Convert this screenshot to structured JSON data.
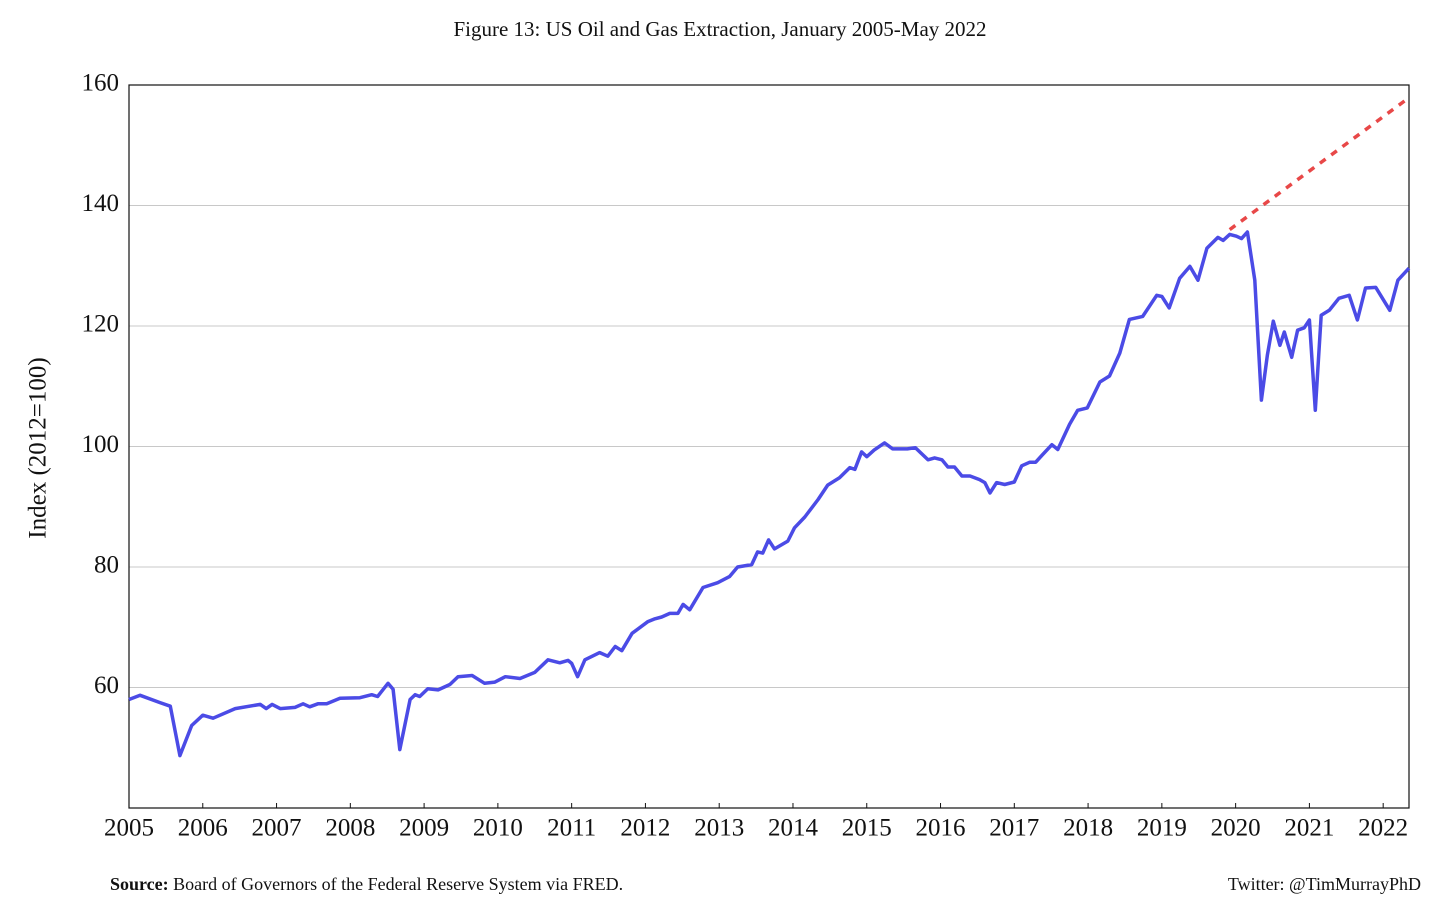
{
  "chart_data": {
    "type": "line",
    "title": "Figure 13: US Oil and Gas Extraction, January 2005-May 2022",
    "ylabel": "Index (2012=100)",
    "source_label": "Source:",
    "source": "Board of Governors of the Federal Reserve System via FRED.",
    "credit": "Twitter: @TimMurrayPhD",
    "xlim": [
      2005,
      2022.35
    ],
    "xticks": [
      2005,
      2006,
      2007,
      2008,
      2009,
      2010,
      2011,
      2012,
      2013,
      2014,
      2015,
      2016,
      2017,
      2018,
      2019,
      2020,
      2021,
      2022
    ],
    "ylim": [
      40,
      160
    ],
    "yticks": [
      60,
      80,
      100,
      120,
      140,
      160
    ],
    "grid": true,
    "series": [
      {
        "color": "#4b4be6",
        "x": [
          2005.0,
          2005.15,
          2005.42,
          2005.56,
          2005.69,
          2005.85,
          2006.0,
          2006.14,
          2006.44,
          2006.78,
          2006.86,
          2006.94,
          2007.05,
          2007.25,
          2007.36,
          2007.45,
          2007.56,
          2007.68,
          2007.86,
          2008.13,
          2008.29,
          2008.37,
          2008.51,
          2008.58,
          2008.67,
          2008.81,
          2008.88,
          2008.94,
          2009.05,
          2009.19,
          2009.35,
          2009.46,
          2009.65,
          2009.82,
          2009.96,
          2010.1,
          2010.3,
          2010.5,
          2010.68,
          2010.84,
          2010.95,
          2011.0,
          2011.08,
          2011.18,
          2011.38,
          2011.49,
          2011.59,
          2011.68,
          2011.82,
          2012.03,
          2012.13,
          2012.22,
          2012.33,
          2012.44,
          2012.51,
          2012.6,
          2012.78,
          2012.98,
          2013.14,
          2013.25,
          2013.44,
          2013.52,
          2013.59,
          2013.67,
          2013.75,
          2013.93,
          2014.02,
          2014.16,
          2014.34,
          2014.47,
          2014.63,
          2014.77,
          2014.84,
          2014.93,
          2015.0,
          2015.1,
          2015.24,
          2015.35,
          2015.55,
          2015.66,
          2015.83,
          2015.92,
          2016.02,
          2016.1,
          2016.19,
          2016.29,
          2016.4,
          2016.53,
          2016.6,
          2016.67,
          2016.76,
          2016.87,
          2017.0,
          2017.1,
          2017.21,
          2017.29,
          2017.38,
          2017.51,
          2017.59,
          2017.75,
          2017.86,
          2017.99,
          2018.16,
          2018.29,
          2018.43,
          2018.56,
          2018.74,
          2018.93,
          2019.0,
          2019.1,
          2019.24,
          2019.38,
          2019.49,
          2019.61,
          2019.76,
          2019.83,
          2019.92,
          2020.01,
          2020.08,
          2020.16,
          2020.26,
          2020.35,
          2020.43,
          2020.51,
          2020.6,
          2020.66,
          2020.76,
          2020.84,
          2020.93,
          2021.0,
          2021.08,
          2021.16,
          2021.27,
          2021.4,
          2021.54,
          2021.65,
          2021.76,
          2021.9,
          2022.09,
          2022.2,
          2022.35
        ],
        "values": [
          58.0,
          58.7,
          57.5,
          56.9,
          48.7,
          53.7,
          55.4,
          54.9,
          56.5,
          57.2,
          56.5,
          57.2,
          56.5,
          56.7,
          57.3,
          56.8,
          57.3,
          57.3,
          58.2,
          58.3,
          58.8,
          58.5,
          60.7,
          59.7,
          49.7,
          58.0,
          58.8,
          58.5,
          59.8,
          59.6,
          60.5,
          61.8,
          62.0,
          60.7,
          60.9,
          61.8,
          61.5,
          62.5,
          64.6,
          64.1,
          64.5,
          64.0,
          61.8,
          64.6,
          65.8,
          65.2,
          66.8,
          66.1,
          69.0,
          70.9,
          71.4,
          71.7,
          72.3,
          72.3,
          73.8,
          72.9,
          76.6,
          77.4,
          78.4,
          80.0,
          80.4,
          82.5,
          82.3,
          84.5,
          83.0,
          84.3,
          86.5,
          88.3,
          91.2,
          93.6,
          94.8,
          96.5,
          96.2,
          99.1,
          98.3,
          99.4,
          100.6,
          99.6,
          99.6,
          99.8,
          97.8,
          98.1,
          97.8,
          96.6,
          96.6,
          95.1,
          95.1,
          94.5,
          94.0,
          92.3,
          94.0,
          93.7,
          94.1,
          96.8,
          97.4,
          97.4,
          98.6,
          100.3,
          99.5,
          103.7,
          106.0,
          106.4,
          110.7,
          111.7,
          115.5,
          121.1,
          121.6,
          125.1,
          124.9,
          123.0,
          127.9,
          129.9,
          127.6,
          132.9,
          134.7,
          134.2,
          135.2,
          134.9,
          134.5,
          135.6,
          127.6,
          107.7,
          115.2,
          120.8,
          116.8,
          119.0,
          114.8,
          119.3,
          119.7,
          121.0,
          106.0,
          121.8,
          122.6,
          124.6,
          125.1,
          121.0,
          126.3,
          126.4,
          122.6,
          127.6,
          129.6
        ]
      },
      {
        "color": "#e84848",
        "dashed": true,
        "x": [
          2019.92,
          2022.35
        ],
        "values": [
          136.0,
          157.9
        ]
      }
    ]
  }
}
